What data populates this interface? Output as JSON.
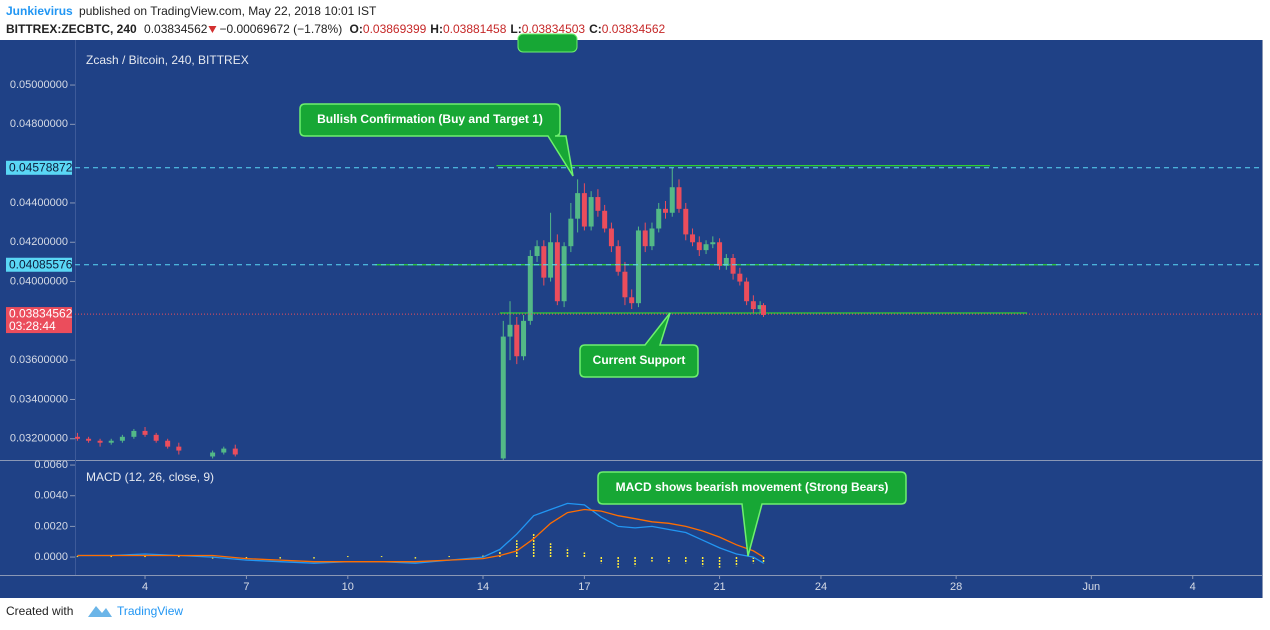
{
  "header": {
    "author": "Junkievirus",
    "published": "published on TradingView.com, May 22, 2018 10:01 IST",
    "symbol": "BITTREX:ZECBTC, 240",
    "price": "0.03834562",
    "change": "−0.00069672 (−1.78%)",
    "ohlc": [
      {
        "label": "O:",
        "value": "0.03869399"
      },
      {
        "label": "H:",
        "value": "0.03881458"
      },
      {
        "label": "L:",
        "value": "0.03834503"
      },
      {
        "label": "C:",
        "value": "0.03834562"
      }
    ]
  },
  "annotations": [
    "Bullish Confirmation (Buy and Target 1)",
    "Current Support",
    "MACD shows bearish movement (Strong Bears)"
  ],
  "footer": {
    "created": "Created with",
    "brand": "TradingView"
  },
  "chart_data": [
    {
      "type": "candlestick",
      "title": "Zcash / Bitcoin, 240, BITTREX",
      "up_color": "#53b987",
      "down_color": "#eb4d5c",
      "xlim": [
        1.928,
        37.05
      ],
      "ylim": [
        0.03092,
        0.05219
      ],
      "yticks": [
        {
          "value": 0.05,
          "label": "0.05000000"
        },
        {
          "value": 0.048,
          "label": "0.04800000"
        },
        {
          "value": 0.044,
          "label": "0.04400000"
        },
        {
          "value": 0.042,
          "label": "0.04200000"
        },
        {
          "value": 0.04,
          "label": "0.04000000"
        },
        {
          "value": 0.036,
          "label": "0.03600000"
        },
        {
          "value": 0.034,
          "label": "0.03400000"
        },
        {
          "value": 0.032,
          "label": "0.03200000"
        }
      ],
      "x": [
        2.0,
        2.33,
        2.67,
        3.0,
        3.33,
        3.67,
        4.0,
        4.33,
        4.67,
        5.0,
        6.0,
        6.33,
        6.67,
        14.6,
        14.8,
        15.0,
        15.2,
        15.4,
        15.6,
        15.8,
        16.0,
        16.2,
        16.4,
        16.6,
        16.8,
        17.0,
        17.2,
        17.4,
        17.6,
        17.8,
        18.0,
        18.2,
        18.4,
        18.6,
        18.8,
        19.0,
        19.2,
        19.4,
        19.6,
        19.8,
        20.0,
        20.2,
        20.4,
        20.6,
        20.8,
        21.0,
        21.2,
        21.4,
        21.6,
        21.8,
        22.0,
        22.2,
        22.3
      ],
      "open": [
        0.0321,
        0.032,
        0.0319,
        0.0318,
        0.0319,
        0.0321,
        0.0324,
        0.0322,
        0.0319,
        0.0316,
        0.0311,
        0.0313,
        0.0315,
        0.031,
        0.0372,
        0.0378,
        0.0362,
        0.038,
        0.0413,
        0.0418,
        0.0402,
        0.042,
        0.039,
        0.0418,
        0.0432,
        0.0445,
        0.0428,
        0.0443,
        0.0436,
        0.0427,
        0.0418,
        0.0405,
        0.0392,
        0.0389,
        0.0426,
        0.0418,
        0.0427,
        0.0437,
        0.0435,
        0.0448,
        0.0437,
        0.0424,
        0.042,
        0.0416,
        0.0419,
        0.042,
        0.0408,
        0.0412,
        0.0404,
        0.04,
        0.039,
        0.0386,
        0.0388
      ],
      "high": [
        0.0323,
        0.0321,
        0.032,
        0.032,
        0.0322,
        0.0325,
        0.0326,
        0.0323,
        0.032,
        0.0318,
        0.0314,
        0.0316,
        0.0317,
        0.038,
        0.039,
        0.0382,
        0.0383,
        0.0416,
        0.0421,
        0.0421,
        0.0435,
        0.0424,
        0.042,
        0.044,
        0.0452,
        0.045,
        0.0446,
        0.0447,
        0.0439,
        0.043,
        0.0421,
        0.041,
        0.0396,
        0.0428,
        0.043,
        0.043,
        0.044,
        0.0441,
        0.0458,
        0.0452,
        0.044,
        0.0427,
        0.0423,
        0.0421,
        0.0423,
        0.0422,
        0.0414,
        0.0414,
        0.0407,
        0.0402,
        0.0393,
        0.039,
        0.0389
      ],
      "low": [
        0.0319,
        0.0318,
        0.0316,
        0.0317,
        0.0318,
        0.032,
        0.0321,
        0.0318,
        0.0315,
        0.0312,
        0.031,
        0.0312,
        0.0311,
        0.0308,
        0.036,
        0.0358,
        0.036,
        0.0378,
        0.041,
        0.0398,
        0.04,
        0.0388,
        0.0387,
        0.0415,
        0.0425,
        0.0426,
        0.0426,
        0.0433,
        0.0425,
        0.0415,
        0.0403,
        0.0388,
        0.0386,
        0.0387,
        0.0415,
        0.0416,
        0.0425,
        0.0432,
        0.0433,
        0.0435,
        0.0421,
        0.0418,
        0.0413,
        0.0414,
        0.0417,
        0.0406,
        0.0406,
        0.0401,
        0.0398,
        0.0388,
        0.0384,
        0.0384,
        0.0382
      ],
      "close": [
        0.032,
        0.0319,
        0.0318,
        0.0319,
        0.0321,
        0.0324,
        0.0322,
        0.0319,
        0.0316,
        0.0314,
        0.0313,
        0.0315,
        0.0312,
        0.0372,
        0.0378,
        0.0362,
        0.038,
        0.0413,
        0.0418,
        0.0402,
        0.042,
        0.039,
        0.0418,
        0.0432,
        0.0445,
        0.0428,
        0.0443,
        0.0436,
        0.0427,
        0.0418,
        0.0405,
        0.0392,
        0.0389,
        0.0426,
        0.0418,
        0.0427,
        0.0437,
        0.0435,
        0.0448,
        0.0437,
        0.0424,
        0.042,
        0.0416,
        0.0419,
        0.042,
        0.0408,
        0.0412,
        0.0404,
        0.04,
        0.039,
        0.0386,
        0.0388,
        0.0383
      ],
      "levels": [
        {
          "value": 0.04578872,
          "color": "#5ad7f5"
        },
        {
          "value": 0.04085576,
          "color": "#5ad7f5"
        }
      ],
      "last_price": 0.03834562,
      "last_color": "#eb4d5c",
      "countdown": "03:28:44",
      "trend_lines": [
        {
          "value": 0.0459,
          "x": [
            14.4,
            29.0
          ]
        },
        {
          "value": 0.04085576,
          "x": [
            10.8,
            31.0
          ]
        },
        {
          "value": 0.0384,
          "x": [
            14.5,
            30.1
          ]
        }
      ],
      "trend_color": "#2fd12f"
    },
    {
      "type": "line",
      "title": "MACD (12, 26, close, 9)",
      "xlim": [
        1.928,
        37.05
      ],
      "ylim": [
        -0.00117,
        0.00633
      ],
      "yticks": [
        {
          "value": 0.006,
          "label": "0.0060"
        },
        {
          "value": 0.004,
          "label": "0.0040"
        },
        {
          "value": 0.002,
          "label": "0.0020"
        },
        {
          "value": 0,
          "label": "0.0000"
        }
      ],
      "xticks": [
        4,
        7,
        10,
        14,
        17,
        21,
        24,
        28,
        {
          "value": 32,
          "label": "Jun"
        },
        {
          "value": 35,
          "label": "4"
        }
      ],
      "x": [
        2,
        3,
        4,
        5,
        6,
        7,
        8,
        9,
        10,
        11,
        12,
        13,
        14,
        14.5,
        15,
        15.5,
        16,
        16.5,
        17,
        17.5,
        18,
        18.5,
        19,
        19.5,
        20,
        20.5,
        21,
        21.5,
        22,
        22.3
      ],
      "series": [
        {
          "color": "#2196f3",
          "values": [
            0.0001,
            0.0001,
            0.0002,
            0.0001,
            0.0,
            -0.0002,
            -0.0003,
            -0.0004,
            -0.0003,
            -0.0003,
            -0.0004,
            -0.0002,
            0.0,
            0.0005,
            0.0015,
            0.0027,
            0.0031,
            0.0035,
            0.0034,
            0.0026,
            0.002,
            0.0019,
            0.002,
            0.0018,
            0.0016,
            0.0011,
            0.0006,
            0.0002,
            0.0,
            -0.0004
          ]
        },
        {
          "color": "#ff6d00",
          "values": [
            0.0001,
            0.0001,
            0.0001,
            0.0001,
            0.0001,
            -0.0001,
            -0.0002,
            -0.0003,
            -0.0003,
            -0.0003,
            -0.0003,
            -0.0002,
            -0.0001,
            0.0001,
            0.0004,
            0.0012,
            0.0022,
            0.0029,
            0.0031,
            0.003,
            0.0027,
            0.0025,
            0.0023,
            0.0022,
            0.002,
            0.0017,
            0.0013,
            0.0008,
            0.0004,
            0.0
          ]
        }
      ],
      "histogram": {
        "color": "#ffeb3b",
        "values": [
          0.0,
          0.0,
          0.0001,
          0.0,
          -0.0001,
          -0.0001,
          -0.0001,
          -0.0001,
          0.0,
          0.0,
          -0.0001,
          0.0,
          0.0001,
          0.0004,
          0.0011,
          0.0015,
          0.0009,
          0.0006,
          0.0003,
          -0.0004,
          -0.0007,
          -0.0006,
          -0.0003,
          -0.0004,
          -0.0004,
          -0.0006,
          -0.0007,
          -0.0006,
          -0.0004,
          -0.0004
        ]
      }
    }
  ]
}
